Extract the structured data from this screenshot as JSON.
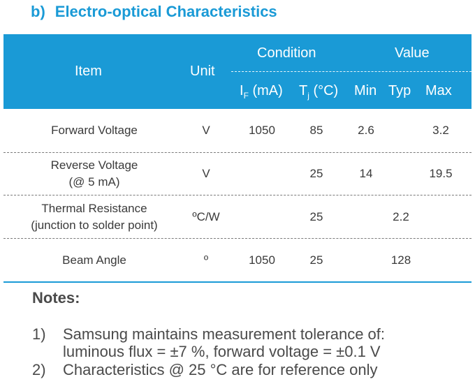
{
  "title": {
    "number": "b)",
    "text": "Electro-optical Characteristics"
  },
  "header": {
    "item": "Item",
    "unit": "Unit",
    "condition": "Condition",
    "value": "Value",
    "if_ma": "IF (mA)",
    "tj_c": "Tj (°C)",
    "min": "Min",
    "typ": "Typ",
    "max": "Max"
  },
  "rows": [
    {
      "item": "Forward Voltage",
      "unit": "V",
      "if_ma": "1050",
      "tj_c": "85",
      "min": "2.6",
      "typ": "",
      "max": "3.2"
    },
    {
      "item": "Reverse Voltage\n(@ 5 mA)",
      "unit": "V",
      "if_ma": "",
      "tj_c": "25",
      "min": "14",
      "typ": "",
      "max": "19.5"
    },
    {
      "item": "Thermal Resistance\n(junction to solder point)",
      "unit": "ºC/W",
      "if_ma": "",
      "tj_c": "25",
      "min": "",
      "typ": "2.2",
      "max": ""
    },
    {
      "item": "Beam Angle",
      "unit": "º",
      "if_ma": "1050",
      "tj_c": "25",
      "min": "",
      "typ": "128",
      "max": ""
    }
  ],
  "notes": {
    "title": "Notes:",
    "items": [
      {
        "num": "1)",
        "lines": [
          "Samsung maintains measurement tolerance of:",
          "luminous flux = ±7 %, forward voltage = ±0.1 V"
        ]
      },
      {
        "num": "2)",
        "lines": [
          "Characteristics @ 25 °C are for reference only"
        ]
      }
    ]
  },
  "colors": {
    "accent": "#1a9ad6",
    "text": "#3a3a3a"
  }
}
